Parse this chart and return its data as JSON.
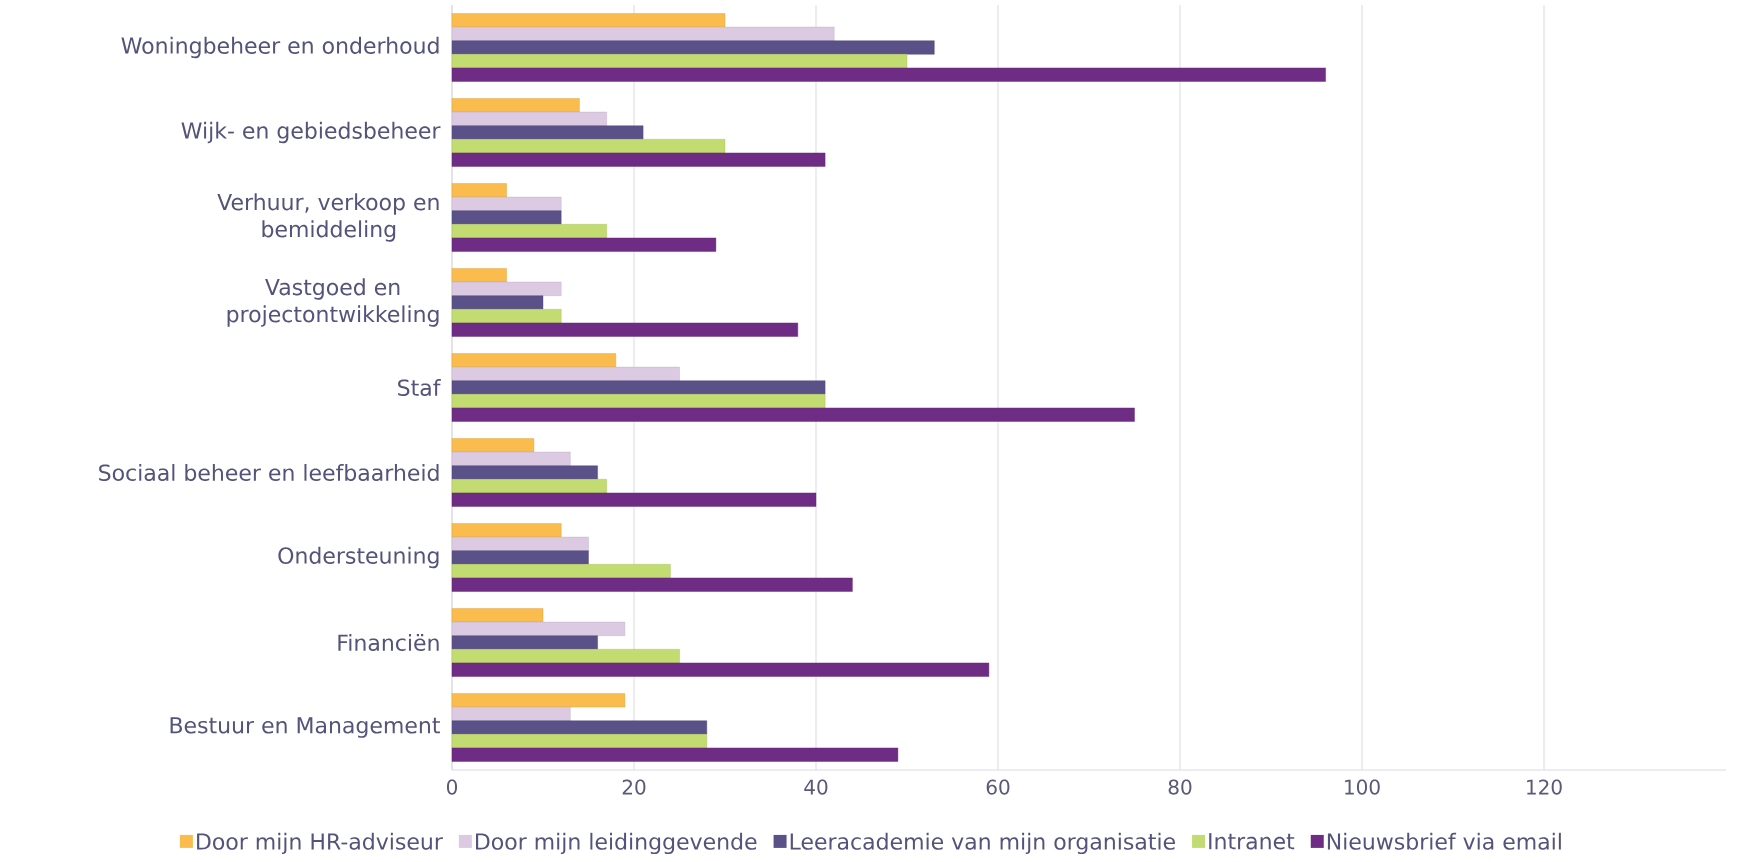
{
  "chart_data": {
    "type": "bar",
    "orientation": "horizontal",
    "categories": [
      "Woningbeheer en onderhoud",
      "Wijk- en gebiedsbeheer",
      "Verhuur, verkoop en bemiddeling",
      "Vastgoed en projectontwikkeling",
      "Staf",
      "Sociaal beheer en leefbaarheid",
      "Ondersteuning",
      "Financiën",
      "Bestuur en Management"
    ],
    "series": [
      {
        "name": "Door mijn HR-adviseur",
        "color": "#fbbc4e",
        "values": [
          30,
          14,
          6,
          6,
          18,
          9,
          12,
          10,
          19
        ]
      },
      {
        "name": "Door mijn leidinggevende",
        "color": "#dccae2",
        "values": [
          42,
          17,
          12,
          12,
          25,
          13,
          15,
          19,
          13
        ]
      },
      {
        "name": "Leeracademie van mijn organisatie",
        "color": "#5a5188",
        "values": [
          53,
          21,
          12,
          10,
          41,
          16,
          15,
          16,
          28
        ]
      },
      {
        "name": "Intranet",
        "color": "#c2dc71",
        "values": [
          50,
          30,
          17,
          12,
          41,
          17,
          24,
          25,
          28
        ]
      },
      {
        "name": "Nieuwsbrief via email",
        "color": "#6f2c84",
        "values": [
          96,
          41,
          29,
          38,
          75,
          40,
          44,
          59,
          49
        ]
      }
    ],
    "xlim": [
      0,
      140
    ],
    "xticks": [
      0,
      20,
      40,
      60,
      80,
      100,
      120
    ],
    "grid": "x",
    "legend": "bottom"
  }
}
